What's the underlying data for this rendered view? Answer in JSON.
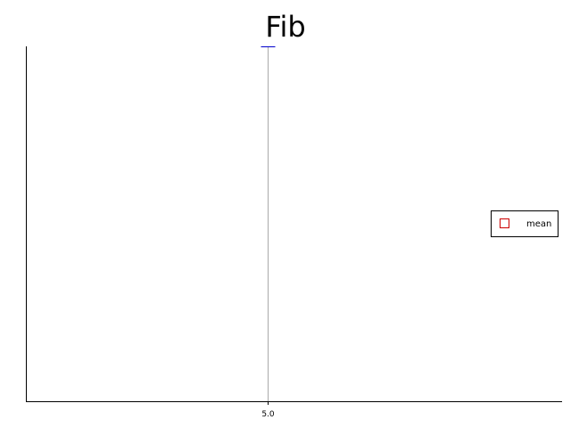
{
  "chart_data": {
    "type": "scatter",
    "title": "Fib",
    "xlabel": "",
    "ylabel": "",
    "x_ticks": [
      "5.0"
    ],
    "xlim": [
      0,
      10
    ],
    "ylim": [
      0,
      1
    ],
    "grid": false,
    "legend_position": "right",
    "series": [
      {
        "name": "mean",
        "x": [
          5.0
        ],
        "y": [
          1.0
        ],
        "color": "#0000cc",
        "marker_color": "#cc0000"
      }
    ],
    "colors": {
      "axis": "#000000",
      "guide": "#aaaaaa",
      "mean_marker": "#0000cc"
    }
  }
}
